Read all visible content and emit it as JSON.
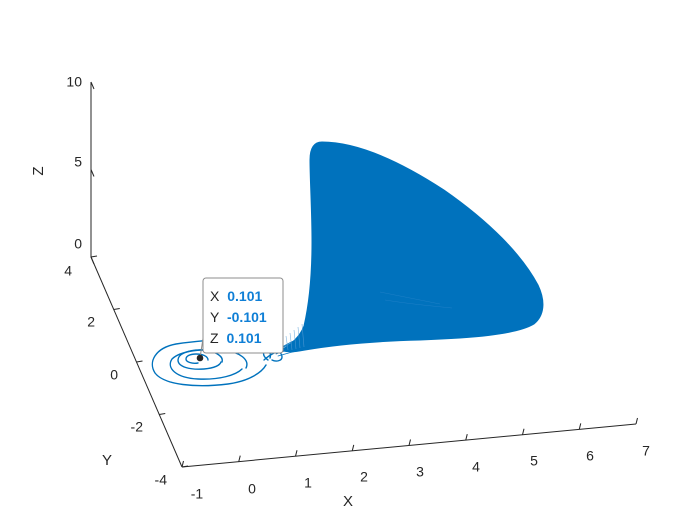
{
  "chart_data": {
    "type": "line3d",
    "xlabel": "X",
    "ylabel": "Y",
    "zlabel": "Z",
    "xlim": [
      -1,
      7
    ],
    "ylim": [
      -4,
      4
    ],
    "zlim": [
      0,
      10
    ],
    "x_ticks": [
      "-1",
      "0",
      "1",
      "2",
      "3",
      "4",
      "5",
      "6",
      "7"
    ],
    "y_ticks": [
      "-4",
      "-2",
      "0",
      "2",
      "4"
    ],
    "z_ticks": [
      "0",
      "5",
      "10"
    ],
    "grid": false,
    "series_color": "#0072BD",
    "datatip": {
      "x_label": "X",
      "x_value": "0.101",
      "y_label": "Y",
      "y_value": "-0.101",
      "z_label": "Z",
      "z_value": "0.101"
    }
  }
}
